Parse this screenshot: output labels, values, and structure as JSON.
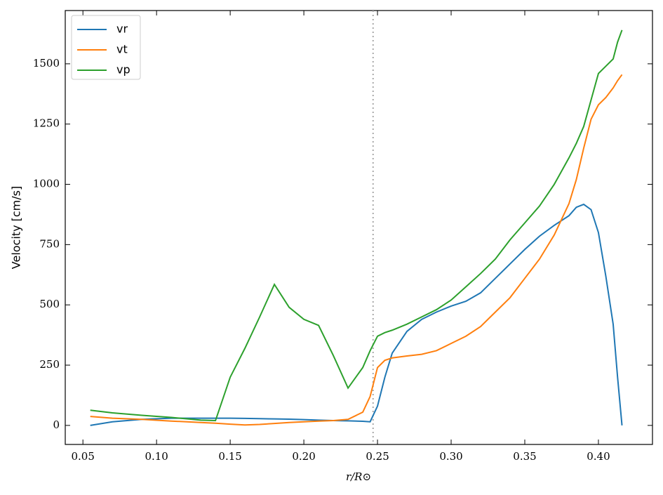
{
  "chart_data": {
    "type": "line",
    "xlabel": "r/R⊙",
    "ylabel": "Velocity [cm/s]",
    "x": [
      0.055,
      0.07,
      0.09,
      0.11,
      0.13,
      0.14,
      0.15,
      0.16,
      0.17,
      0.18,
      0.19,
      0.2,
      0.21,
      0.22,
      0.23,
      0.24,
      0.245,
      0.25,
      0.255,
      0.26,
      0.27,
      0.28,
      0.29,
      0.3,
      0.31,
      0.32,
      0.33,
      0.34,
      0.35,
      0.36,
      0.37,
      0.38,
      0.385,
      0.39,
      0.395,
      0.4,
      0.405,
      0.41,
      0.413,
      0.416
    ],
    "series": [
      {
        "name": "vr",
        "color": "#1f77b4",
        "values": [
          0,
          15,
          25,
          30,
          30,
          30,
          30,
          29,
          28,
          27,
          26,
          24,
          22,
          20,
          19,
          17,
          15,
          80,
          200,
          300,
          390,
          440,
          470,
          495,
          515,
          550,
          610,
          670,
          730,
          785,
          830,
          870,
          905,
          917,
          895,
          800,
          620,
          420,
          200,
          0
        ]
      },
      {
        "name": "vt",
        "color": "#ff7f0e",
        "values": [
          37,
          30,
          25,
          18,
          12,
          9,
          5,
          2,
          4,
          8,
          12,
          15,
          18,
          20,
          25,
          55,
          120,
          240,
          270,
          280,
          288,
          295,
          310,
          340,
          370,
          410,
          470,
          530,
          610,
          690,
          790,
          920,
          1020,
          1150,
          1270,
          1330,
          1360,
          1400,
          1430,
          1455
        ]
      },
      {
        "name": "vp",
        "color": "#2ca02c",
        "values": [
          63,
          52,
          42,
          33,
          22,
          20,
          200,
          320,
          450,
          585,
          490,
          440,
          415,
          290,
          155,
          240,
          310,
          370,
          385,
          395,
          420,
          450,
          480,
          520,
          575,
          630,
          690,
          770,
          840,
          910,
          1000,
          1110,
          1170,
          1240,
          1350,
          1460,
          1490,
          1520,
          1590,
          1640
        ]
      }
    ],
    "vline": 0.247,
    "xlim": [
      0.038,
      0.4367
    ],
    "ylim": [
      -79,
      1721
    ],
    "xticks": [
      0.05,
      {
        "value": 0.1,
        "label": "0.10"
      },
      0.15,
      {
        "value": 0.2,
        "label": "0.20"
      },
      0.25,
      {
        "value": 0.3,
        "label": "0.30"
      },
      0.35,
      {
        "value": 0.4,
        "label": "0.40"
      }
    ],
    "yticks": [
      0,
      250,
      500,
      750,
      1000,
      1250,
      1500
    ],
    "legend": "upper left"
  }
}
